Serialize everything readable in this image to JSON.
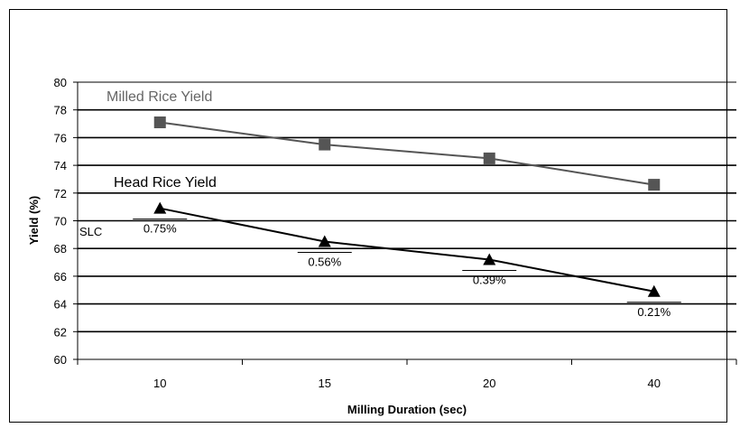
{
  "chart_data": {
    "type": "line",
    "categories": [
      "10",
      "15",
      "20",
      "40"
    ],
    "xlabel": "Milling Duration (sec)",
    "ylabel": "Yield (%)",
    "ylim": [
      60,
      80
    ],
    "yticks": [
      "60",
      "62",
      "64",
      "66",
      "68",
      "70",
      "72",
      "74",
      "76",
      "78",
      "80"
    ],
    "grid": true,
    "series": [
      {
        "name": "Milled Rice Yield",
        "values": [
          77.1,
          75.5,
          74.5,
          72.6
        ],
        "color": "#555555",
        "marker": "square"
      },
      {
        "name": "Head Rice Yield",
        "values": [
          70.9,
          68.5,
          67.2,
          64.9
        ],
        "color": "#000000",
        "marker": "triangle"
      }
    ],
    "annotations": {
      "slc": "SLC",
      "point_labels": [
        "0.75%",
        "0.56%",
        "0.39%",
        "0.21%"
      ]
    }
  }
}
